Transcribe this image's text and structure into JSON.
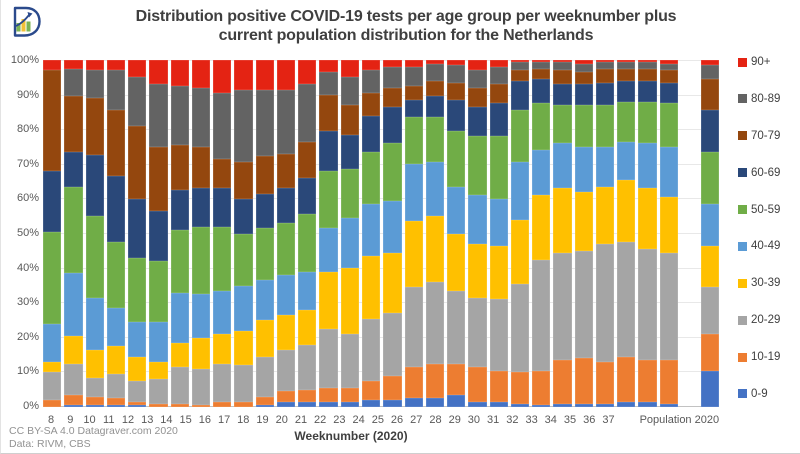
{
  "title": {
    "line1": "Distribution positive COVID-19 tests per age group per weeknumber plus",
    "line2": "current population distribution for the Netherlands"
  },
  "footer": {
    "line1": "CC BY-SA 4.0 Datagraver.com 2020",
    "line2": "Data: RIVM, CBS"
  },
  "logo": {
    "name": "datagraver-logo"
  },
  "chart_data": {
    "type": "bar",
    "stacking": "percent",
    "title": "Distribution positive COVID-19 tests per age group per weeknumber plus current population distribution for the Netherlands",
    "xlabel": "Weeknumber (2020)",
    "ylabel": "",
    "ylim": [
      0,
      100
    ],
    "grid": "horizontal",
    "legend_position": "right",
    "y_ticks_top_to_bottom": [
      "100%",
      "90%",
      "80%",
      "70%",
      "60%",
      "50%",
      "40%",
      "30%",
      "20%",
      "10%",
      "0%"
    ],
    "legend_top_to_bottom": [
      "90+",
      "80-89",
      "70-79",
      "60-69",
      "50-59",
      "40-49",
      "30-39",
      "20-29",
      "10-19",
      "0-9"
    ],
    "categories": [
      "8",
      "9",
      "10",
      "11",
      "12",
      "13",
      "14",
      "15",
      "16",
      "17",
      "18",
      "19",
      "20",
      "21",
      "22",
      "23",
      "24",
      "25",
      "26",
      "27",
      "28",
      "29",
      "30",
      "31",
      "32",
      "33",
      "34",
      "35",
      "36",
      "37",
      "Population 2020"
    ],
    "series": [
      {
        "name": "0-9",
        "color": "#4472C4",
        "values": [
          0,
          0.5,
          0.5,
          0.5,
          0.5,
          0,
          0,
          0,
          0,
          0,
          0.5,
          1.5,
          1.5,
          1.5,
          1.5,
          2,
          2,
          2.5,
          2.5,
          3.5,
          1.5,
          1.5,
          1,
          0.5,
          1,
          1,
          1,
          1.5,
          1.5,
          1,
          10.5
        ]
      },
      {
        "name": "10-19",
        "color": "#ED7D31",
        "values": [
          2,
          3,
          2.5,
          2,
          1,
          1,
          1,
          0.5,
          1.5,
          1.5,
          2.5,
          3,
          3.5,
          4,
          4,
          5.5,
          7,
          9,
          10,
          9,
          10,
          9,
          9,
          10,
          12.5,
          13,
          12,
          13,
          12,
          12.5,
          10.5
        ]
      },
      {
        "name": "20-29",
        "color": "#A5A5A5",
        "values": [
          8,
          9,
          5.5,
          7,
          6,
          7,
          10.5,
          10.5,
          11,
          10.5,
          11.5,
          12,
          13,
          17,
          15.5,
          18,
          18,
          23,
          23.5,
          21,
          20,
          20.5,
          25.5,
          32,
          31,
          31,
          34,
          33,
          32,
          31,
          13.5
        ]
      },
      {
        "name": "30-39",
        "color": "#FFC000",
        "values": [
          3,
          8,
          8,
          8,
          7,
          5,
          7,
          9,
          8.5,
          10,
          10.5,
          10,
          10,
          16.5,
          19,
          18,
          17.5,
          19,
          19,
          16.5,
          15.5,
          15.5,
          18.5,
          18.5,
          18.5,
          17,
          16.5,
          18,
          17.5,
          16,
          12
        ]
      },
      {
        "name": "40-49",
        "color": "#5B9BD5",
        "values": [
          11,
          18,
          15,
          11,
          10,
          11.5,
          14.5,
          12.5,
          12.5,
          13,
          11.5,
          11.5,
          11,
          12.5,
          14.5,
          15,
          15,
          16.5,
          15.5,
          13.5,
          14,
          13.5,
          16.5,
          13,
          13,
          13,
          11.5,
          11,
          13,
          14.5,
          12
        ]
      },
      {
        "name": "50-59",
        "color": "#70AD47",
        "values": [
          26.5,
          25,
          23.5,
          19,
          18.5,
          17.5,
          18,
          19.5,
          18.5,
          15,
          15,
          15,
          16.5,
          16.5,
          14,
          15,
          16.5,
          13.5,
          13,
          16,
          17,
          18,
          15,
          13.5,
          11,
          12,
          12,
          11.5,
          12,
          12.5,
          15
        ]
      },
      {
        "name": "60-69",
        "color": "#2A4879",
        "values": [
          17.5,
          10,
          17.5,
          19,
          17,
          14.5,
          11.5,
          11,
          11,
          10,
          10,
          10,
          10.5,
          11.5,
          10,
          10.5,
          10.5,
          5,
          6,
          9,
          8.5,
          9.5,
          8.5,
          7,
          6,
          6,
          6.5,
          6,
          6,
          6,
          12
        ]
      },
      {
        "name": "70-79",
        "color": "#94470E",
        "values": [
          29,
          16,
          16.5,
          19,
          21,
          18.5,
          13,
          12,
          8.5,
          10.5,
          11,
          10,
          10.5,
          10.5,
          8.5,
          6.5,
          5.5,
          4,
          4.5,
          5,
          5.5,
          5.5,
          3,
          3,
          4,
          3.5,
          4,
          3.5,
          3.5,
          3.5,
          9
        ]
      },
      {
        "name": "80-89",
        "color": "#636363",
        "values": [
          0,
          8,
          8,
          11.5,
          14,
          18,
          17,
          17,
          19,
          21,
          19,
          18.5,
          16.5,
          6.5,
          8,
          6.5,
          6,
          5.5,
          5,
          5,
          5,
          5,
          2.5,
          2,
          2.5,
          2.5,
          2,
          2,
          2,
          2,
          4
        ]
      },
      {
        "name": "90+",
        "color": "#E42313",
        "values": [
          3,
          2.5,
          3,
          3,
          5,
          7,
          7.5,
          8,
          9.5,
          8.5,
          8.5,
          8.5,
          7,
          3.5,
          5,
          3,
          2,
          2,
          1,
          1.5,
          3,
          2,
          0.5,
          0.5,
          0.5,
          1,
          0.5,
          0.5,
          0.5,
          1,
          1.5
        ]
      }
    ]
  }
}
